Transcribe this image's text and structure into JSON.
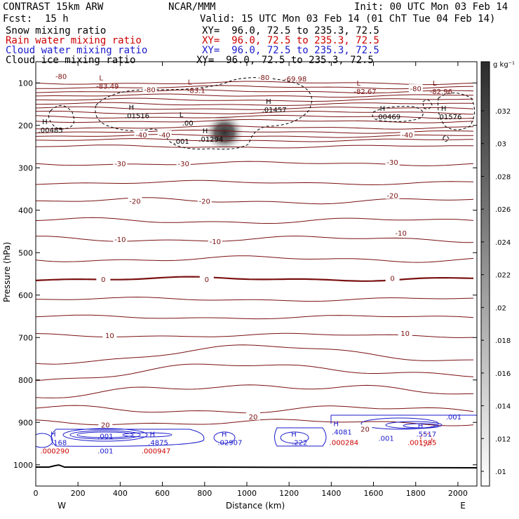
{
  "header": {
    "model": "CONTRAST 15km ARW",
    "org": "NCAR/MMM",
    "init": "Init: 00 UTC Mon 03 Feb 14",
    "fcst_label": "Fcst:",
    "fcst_value": "15 h",
    "valid": "Valid: 15 UTC Mon 03 Feb 14 (01 ChT Tue 04 Feb 14)"
  },
  "fields": [
    {
      "label": "Snow mixing ratio",
      "xy": "XY=  96.0, 72.5 to 235.3, 72.5",
      "color": "#000000"
    },
    {
      "label": "Rain water mixing ratio",
      "xy": "XY=  96.0, 72.5 to 235.3, 72.5",
      "color": "#cc0000"
    },
    {
      "label": "Cloud water mixing ratio",
      "xy": "XY=  96.0, 72.5 to 235.3, 72.5",
      "color": "#1a1acc"
    },
    {
      "label": "Cloud ice mixing ratio",
      "xy": "XY=  96.0, 72.5 to 235.3, 72.5",
      "color": "#000000"
    }
  ],
  "chart_data": {
    "type": "contour",
    "xlabel": "Distance (km)",
    "ylabel": "Pressure (hPa)",
    "x_ticks": [
      0,
      200,
      400,
      600,
      800,
      1000,
      1200,
      1400,
      1600,
      1800,
      2000
    ],
    "y_ticks": [
      100,
      200,
      300,
      400,
      500,
      600,
      700,
      800,
      900,
      1000
    ],
    "xlim": [
      0,
      2090
    ],
    "ylim": [
      50,
      1050
    ],
    "left_end": "W",
    "right_end": "E",
    "colorbar": {
      "unit": "g kg⁻¹",
      "labels": [
        ".032",
        ".03",
        ".028",
        ".026",
        ".024",
        ".022",
        ".02",
        ".018",
        ".016",
        ".014",
        ".012",
        ".01"
      ],
      "range": [
        0.009,
        0.035
      ]
    },
    "temperature_contours": [
      {
        "value": -80,
        "labels": [
          {
            "text": "-80",
            "x": 120,
            "p": 84
          },
          {
            "text": "-80",
            "x": 540,
            "p": 115
          },
          {
            "text": "-80",
            "x": 1080,
            "p": 86
          },
          {
            "text": "-80",
            "x": 1800,
            "p": 113
          }
        ]
      },
      {
        "value": -40,
        "labels": [
          {
            "text": "-40",
            "x": 500,
            "p": 222
          },
          {
            "text": "-40",
            "x": 610,
            "p": 222
          },
          {
            "text": "-40",
            "x": 1760,
            "p": 222
          }
        ]
      },
      {
        "value": -30,
        "labels": [
          {
            "text": "-30",
            "x": 400,
            "p": 290
          },
          {
            "text": "-30",
            "x": 700,
            "p": 290
          },
          {
            "text": "-30",
            "x": 1690,
            "p": 286
          }
        ]
      },
      {
        "value": -20,
        "labels": [
          {
            "text": "-20",
            "x": 470,
            "p": 378
          },
          {
            "text": "-20",
            "x": 800,
            "p": 378
          },
          {
            "text": "-20",
            "x": 1690,
            "p": 365
          }
        ]
      },
      {
        "value": -10,
        "labels": [
          {
            "text": "-10",
            "x": 400,
            "p": 468
          },
          {
            "text": "-10",
            "x": 850,
            "p": 473
          },
          {
            "text": "-10",
            "x": 1730,
            "p": 453
          }
        ]
      },
      {
        "value": 0,
        "labels": [
          {
            "text": "0",
            "x": 320,
            "p": 562
          },
          {
            "text": "0",
            "x": 810,
            "p": 562
          },
          {
            "text": "0",
            "x": 1690,
            "p": 560
          }
        ]
      },
      {
        "value": 10,
        "labels": [
          {
            "text": "10",
            "x": 350,
            "p": 695
          },
          {
            "text": "10",
            "x": 1750,
            "p": 690
          }
        ]
      },
      {
        "value": 20,
        "labels": [
          {
            "text": "20",
            "x": 330,
            "p": 905
          },
          {
            "text": "20",
            "x": 1030,
            "p": 886
          },
          {
            "text": "20",
            "x": 1560,
            "p": 915
          }
        ]
      }
    ],
    "extrema": [
      {
        "mark": "L",
        "value": "-83.49",
        "x": 340,
        "p": 100
      },
      {
        "mark": "L",
        "value": "-83.1",
        "x": 760,
        "p": 110
      },
      {
        "mark": "",
        "value": "-69.98",
        "x": 1230,
        "p": 83
      },
      {
        "mark": "L",
        "value": "-82.67",
        "x": 1560,
        "p": 113
      },
      {
        "mark": "L",
        "value": "-82.96",
        "x": 1920,
        "p": 113
      },
      {
        "mark": "H",
        "value": ".00485",
        "x": 70,
        "p": 204
      },
      {
        "mark": "H",
        "value": ".01516",
        "x": 480,
        "p": 170
      },
      {
        "mark": "L",
        "value": ".00",
        "x": 720,
        "p": 187
      },
      {
        "mark": "H",
        "value": ".01294",
        "x": 830,
        "p": 225
      },
      {
        "mark": "H",
        "value": ".01457",
        "x": 1130,
        "p": 156
      },
      {
        "mark": "H",
        "value": ".00469",
        "x": 1670,
        "p": 172
      },
      {
        "mark": "H",
        "value": ".01576",
        "x": 1960,
        "p": 172
      },
      {
        "mark": "",
        "value": ".001",
        "x": 690,
        "p": 230
      },
      {
        "mark": "H",
        "value": ".168",
        "x": 110,
        "p": 940
      },
      {
        "mark": "",
        "value": ".000290",
        "x": 90,
        "p": 960
      },
      {
        "mark": "",
        "value": ".001",
        "x": 330,
        "p": 925
      },
      {
        "mark": "",
        "value": ".001",
        "x": 330,
        "p": 960
      },
      {
        "mark": "H",
        "value": ".4875",
        "x": 580,
        "p": 940
      },
      {
        "mark": "",
        "value": ".000947",
        "x": 570,
        "p": 960
      },
      {
        "mark": "H",
        "value": ".02907",
        "x": 920,
        "p": 940
      },
      {
        "mark": "H",
        "value": ".222",
        "x": 1250,
        "p": 940
      },
      {
        "mark": "H",
        "value": ".4081",
        "x": 1450,
        "p": 915
      },
      {
        "mark": "",
        "value": ".000284",
        "x": 1460,
        "p": 940
      },
      {
        "mark": "H",
        "value": ".5517",
        "x": 1850,
        "p": 920
      },
      {
        "mark": "",
        "value": ".001985",
        "x": 1830,
        "p": 940
      },
      {
        "mark": "",
        "value": ".001",
        "x": 1660,
        "p": 930
      },
      {
        "mark": "",
        "value": ".001",
        "x": 1980,
        "p": 880
      }
    ]
  }
}
